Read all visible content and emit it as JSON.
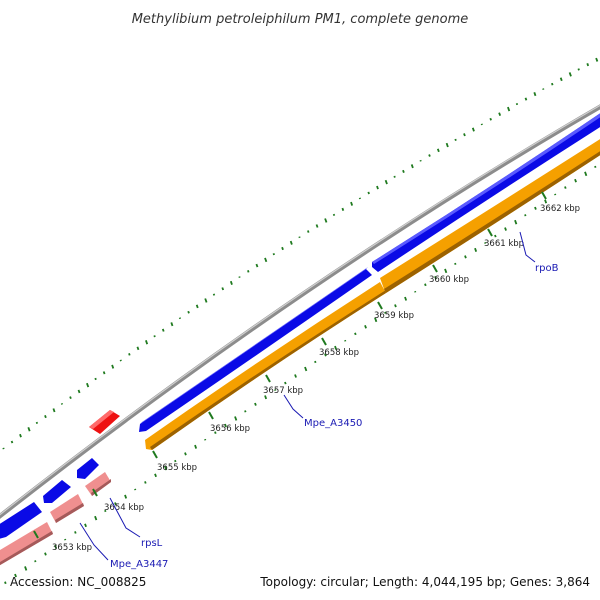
{
  "title": "Methylibium petroleiphilum PM1, complete genome",
  "footer": {
    "accession": "Accession: NC_008825",
    "summary": "Topology: circular; Length: 4,044,195 bp; Genes: 3,864"
  },
  "colors": {
    "backbone": "#8c8c8c",
    "cds_forward": "#0a0ae6",
    "cds_reverse": "#f5a000",
    "rrna_forward": "#ee1111",
    "reverse_pink": "#ef8f8f",
    "tick": "#1f7a1f",
    "gene_label": "#1a1ab3"
  },
  "ticks": [
    {
      "label": "3653 kbp"
    },
    {
      "label": "3654 kbp"
    },
    {
      "label": "3655 kbp"
    },
    {
      "label": "3656 kbp"
    },
    {
      "label": "3657 kbp"
    },
    {
      "label": "3658 kbp"
    },
    {
      "label": "3659 kbp"
    },
    {
      "label": "3660 kbp"
    },
    {
      "label": "3661 kbp"
    },
    {
      "label": "3662 kbp"
    }
  ],
  "gene_labels": [
    {
      "label": "Mpe_A3447"
    },
    {
      "label": "rpsL"
    },
    {
      "label": "Mpe_A3450"
    },
    {
      "label": "rpoB"
    }
  ]
}
